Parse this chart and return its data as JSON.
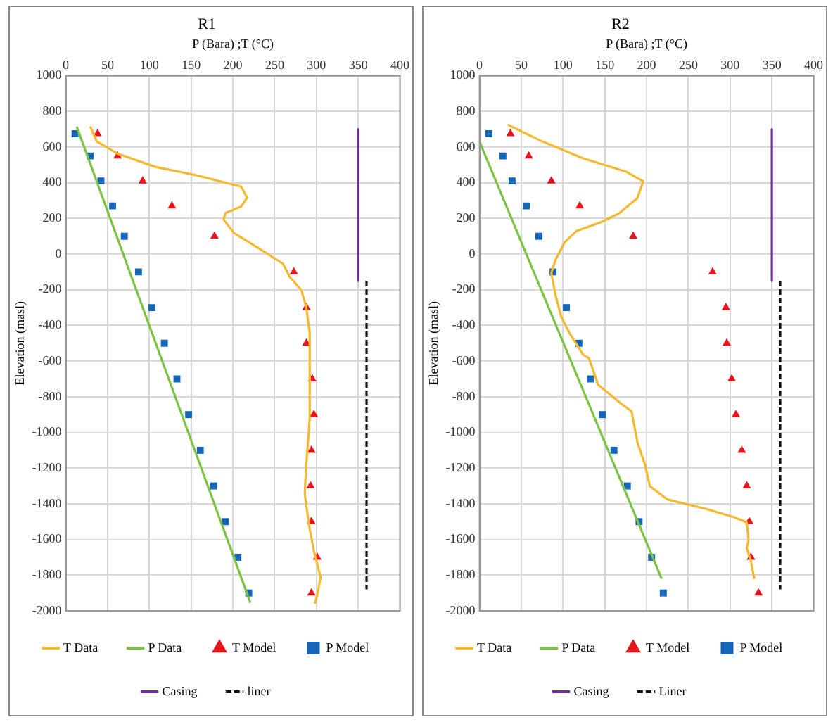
{
  "chart_data": [
    {
      "type": "line",
      "title": "R1",
      "xlabel": "P (Bara) ;T (°C)",
      "ylabel": "Elevation (masl)",
      "xlim": [
        0,
        400
      ],
      "xticks": [
        0,
        50,
        100,
        150,
        200,
        250,
        300,
        350,
        400
      ],
      "ylim": [
        -2000,
        1000
      ],
      "yticks": [
        -2000,
        -1800,
        -1600,
        -1400,
        -1200,
        -1000,
        -800,
        -600,
        -400,
        -200,
        0,
        200,
        400,
        600,
        800,
        1000
      ],
      "grid": true,
      "legend": "bottom",
      "series": [
        {
          "name": "T Data",
          "type": "line",
          "color": "#f5b82e",
          "marker": "none",
          "line_style": "solid",
          "x": [
            29,
            37,
            62,
            107,
            158,
            210,
            217,
            210,
            191,
            189,
            201,
            231,
            260,
            268,
            282,
            288,
            292,
            292,
            292,
            288,
            286,
            291,
            297,
            305,
            301,
            298
          ],
          "values": [
            716,
            632,
            563,
            489,
            440,
            378,
            316,
            267,
            230,
            193,
            119,
            32,
            -54,
            -128,
            -202,
            -301,
            -449,
            -430,
            -923,
            -1170,
            -1343,
            -1516,
            -1664,
            -1812,
            -1911,
            -1960
          ]
        },
        {
          "name": "P Data",
          "type": "line",
          "color": "#7dc243",
          "marker": "none",
          "line_style": "solid",
          "x": [
            13,
            221
          ],
          "values": [
            715,
            -1955
          ]
        },
        {
          "name": "T Model",
          "type": "scatter",
          "color": "#e8141b",
          "marker": "triangle",
          "x": [
            38,
            62,
            92,
            127,
            178,
            273,
            288,
            288,
            295,
            297,
            294,
            293,
            294,
            301,
            294
          ],
          "values": [
            675,
            550,
            410,
            270,
            100,
            -100,
            -300,
            -500,
            -700,
            -900,
            -1100,
            -1300,
            -1500,
            -1700,
            -1900
          ]
        },
        {
          "name": "P Model",
          "type": "scatter",
          "color": "#1565b8",
          "marker": "square",
          "x": [
            11,
            29,
            42,
            56,
            70,
            87,
            103,
            118,
            133,
            147,
            161,
            177,
            191,
            206,
            219
          ],
          "values": [
            675,
            550,
            410,
            270,
            100,
            -100,
            -300,
            -500,
            -700,
            -900,
            -1100,
            -1300,
            -1500,
            -1700,
            -1900
          ]
        },
        {
          "name": "Casing",
          "type": "line",
          "color": "#7030a0",
          "marker": "none",
          "line_style": "solid",
          "x": [
            350,
            350
          ],
          "values": [
            700,
            -150
          ]
        },
        {
          "name": "liner",
          "type": "line",
          "color": "#111111",
          "marker": "none",
          "line_style": "dashed",
          "x": [
            360,
            360
          ],
          "values": [
            -150,
            -1880
          ]
        }
      ]
    },
    {
      "type": "line",
      "title": "R2",
      "xlabel": "P (Bara) ;T (°C)",
      "ylabel": "Elevation (masl)",
      "xlim": [
        0,
        400
      ],
      "xticks": [
        0,
        50,
        100,
        150,
        200,
        250,
        300,
        350,
        400
      ],
      "ylim": [
        -2000,
        1000
      ],
      "yticks": [
        -2000,
        -1800,
        -1600,
        -1400,
        -1200,
        -1000,
        -800,
        -600,
        -400,
        -200,
        0,
        200,
        400,
        600,
        800,
        1000
      ],
      "grid": true,
      "legend": "bottom",
      "series": [
        {
          "name": "T Data",
          "type": "line",
          "color": "#f5b82e",
          "marker": "none",
          "line_style": "solid",
          "x": [
            34,
            73,
            124,
            175,
            196,
            189,
            167,
            145,
            116,
            102,
            91,
            86,
            91,
            98,
            109,
            124,
            131,
            142,
            171,
            182,
            189,
            198,
            204,
            225,
            269,
            305,
            320,
            322,
            320,
            325,
            329
          ],
          "values": [
            725,
            636,
            537,
            463,
            408,
            314,
            228,
            178,
            129,
            67,
            -32,
            -106,
            -230,
            -354,
            -453,
            -564,
            -584,
            -733,
            -844,
            -881,
            -1054,
            -1178,
            -1302,
            -1376,
            -1426,
            -1475,
            -1505,
            -1599,
            -1649,
            -1723,
            -1822
          ]
        },
        {
          "name": "P Data",
          "type": "line",
          "color": "#7dc243",
          "marker": "none",
          "line_style": "solid",
          "x": [
            0,
            218
          ],
          "values": [
            630,
            -1820
          ]
        },
        {
          "name": "T Model",
          "type": "scatter",
          "color": "#e8141b",
          "marker": "triangle",
          "x": [
            37,
            59,
            86,
            120,
            184,
            279,
            295,
            296,
            302,
            307,
            314,
            320,
            323,
            325,
            334
          ],
          "values": [
            675,
            550,
            410,
            270,
            100,
            -100,
            -300,
            -500,
            -700,
            -900,
            -1100,
            -1300,
            -1500,
            -1700,
            -1900
          ]
        },
        {
          "name": "P Model",
          "type": "scatter",
          "color": "#1565b8",
          "marker": "square",
          "x": [
            11,
            28,
            39,
            56,
            71,
            88,
            104,
            119,
            133,
            147,
            161,
            177,
            191,
            206,
            220
          ],
          "values": [
            675,
            550,
            410,
            270,
            100,
            -100,
            -300,
            -500,
            -700,
            -900,
            -1100,
            -1300,
            -1500,
            -1700,
            -1900
          ]
        },
        {
          "name": "Casing",
          "type": "line",
          "color": "#7030a0",
          "marker": "none",
          "line_style": "solid",
          "x": [
            350,
            350
          ],
          "values": [
            700,
            -150
          ]
        },
        {
          "name": "Liner",
          "type": "line",
          "color": "#111111",
          "marker": "none",
          "line_style": "dashed",
          "x": [
            360,
            360
          ],
          "values": [
            -150,
            -1880
          ]
        }
      ]
    }
  ]
}
